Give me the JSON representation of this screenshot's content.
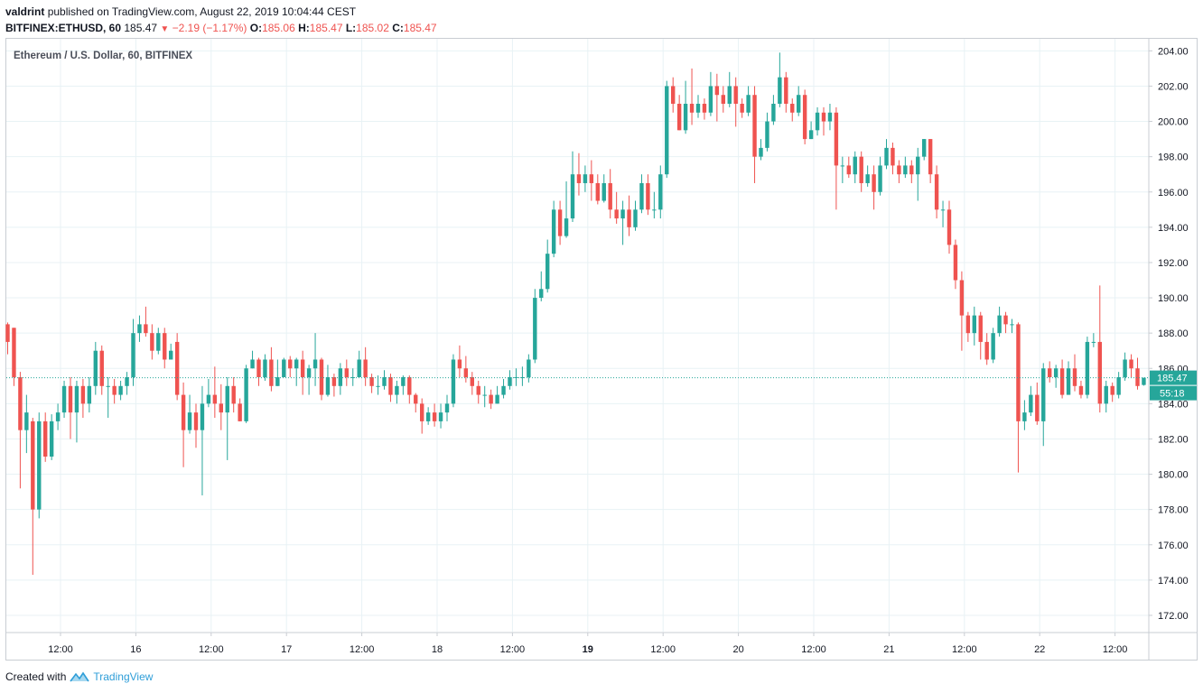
{
  "header": {
    "author": "valdrint",
    "published": "published on TradingView.com, August 22, 2019 10:04:44 CEST",
    "symbol": "BITFINEX:ETHUSD, 60",
    "last": "185.47",
    "change": "−2.19 (−1.17%)",
    "o_label": "O:",
    "o_value": "185.06",
    "h_label": "H:",
    "h_value": "185.47",
    "l_label": "L:",
    "l_value": "185.02",
    "c_label": "C:",
    "c_value": "185.47"
  },
  "footer": {
    "created_with": "Created with",
    "brand": "TradingView",
    "icon": "tradingview-logo-icon"
  },
  "colors": {
    "up": "#26a69a",
    "down": "#ef5350",
    "grid": "#e8f2f5",
    "text": "#131722",
    "price_label_bg": "#26a69a"
  },
  "chart_data": {
    "type": "candlestick",
    "title": "Ethereum / U.S. Dollar, 60, BITFINEX",
    "ylim": [
      171,
      205
    ],
    "y_ticks": [
      "204.00",
      "202.00",
      "200.00",
      "198.00",
      "196.00",
      "194.00",
      "192.00",
      "190.00",
      "188.00",
      "186.00",
      "184.00",
      "182.00",
      "180.00",
      "178.00",
      "176.00",
      "174.00",
      "172.00"
    ],
    "x_ticks": [
      {
        "label": "12:00",
        "hour": 12
      },
      {
        "label": "16",
        "hour": 24
      },
      {
        "label": "12:00",
        "hour": 36
      },
      {
        "label": "17",
        "hour": 48
      },
      {
        "label": "12:00",
        "hour": 60
      },
      {
        "label": "18",
        "hour": 72
      },
      {
        "label": "12:00",
        "hour": 84
      },
      {
        "label": "19",
        "hour": 96,
        "bold": true
      },
      {
        "label": "12:00",
        "hour": 108
      },
      {
        "label": "20",
        "hour": 120
      },
      {
        "label": "12:00",
        "hour": 132
      },
      {
        "label": "21",
        "hour": 144
      },
      {
        "label": "12:00",
        "hour": 156
      },
      {
        "label": "22",
        "hour": 168
      },
      {
        "label": "12:00",
        "hour": 180
      }
    ],
    "current_price": 185.47,
    "current_price_label": "185.47",
    "countdown_label": "55:18",
    "candles": [
      [
        188.5,
        187.5,
        188.6,
        186.8
      ],
      [
        188.3,
        185.5,
        188.3,
        185.0
      ],
      [
        185.5,
        182.5,
        185.8,
        179.2
      ],
      [
        182.5,
        183.5,
        184.5,
        181.2
      ],
      [
        183.0,
        178.0,
        183.2,
        174.3
      ],
      [
        178.0,
        183.0,
        183.5,
        177.5
      ],
      [
        183.0,
        181.0,
        183.5,
        180.7
      ],
      [
        181.0,
        183.0,
        183.4,
        180.8
      ],
      [
        183.0,
        183.5,
        184.0,
        182.5
      ],
      [
        183.5,
        185.0,
        185.3,
        183.2
      ],
      [
        185.0,
        183.5,
        185.5,
        182.0
      ],
      [
        183.5,
        185.0,
        185.3,
        181.8
      ],
      [
        185.0,
        184.0,
        185.4,
        183.2
      ],
      [
        184.0,
        185.0,
        185.5,
        183.5
      ],
      [
        185.0,
        187.0,
        187.5,
        184.5
      ],
      [
        187.0,
        185.0,
        187.3,
        184.5
      ],
      [
        185.0,
        185.0,
        185.5,
        183.2
      ],
      [
        185.0,
        184.5,
        185.4,
        184.0
      ],
      [
        184.5,
        185.0,
        185.3,
        184.2
      ],
      [
        185.0,
        185.5,
        185.8,
        184.5
      ],
      [
        185.5,
        188.0,
        188.8,
        185.0
      ],
      [
        188.0,
        188.5,
        189.0,
        187.5
      ],
      [
        188.5,
        188.0,
        189.5,
        187.8
      ],
      [
        188.0,
        187.0,
        188.5,
        186.5
      ],
      [
        187.0,
        188.0,
        188.3,
        186.8
      ],
      [
        188.0,
        186.5,
        188.3,
        186.0
      ],
      [
        186.5,
        187.0,
        187.4,
        186.5
      ],
      [
        187.5,
        184.5,
        188.0,
        184.2
      ],
      [
        184.5,
        182.5,
        185.2,
        180.4
      ],
      [
        182.5,
        183.5,
        184.5,
        182.3
      ],
      [
        183.5,
        182.5,
        184.0,
        181.5
      ],
      [
        182.5,
        184.0,
        185.0,
        178.8
      ],
      [
        184.0,
        184.5,
        185.4,
        183.8
      ],
      [
        184.5,
        184.0,
        186.1,
        183.2
      ],
      [
        184.0,
        183.5,
        185.1,
        182.5
      ],
      [
        183.5,
        185.0,
        185.5,
        180.8
      ],
      [
        185.0,
        184.0,
        185.5,
        183.5
      ],
      [
        184.0,
        183.0,
        184.3,
        183.0
      ],
      [
        183.0,
        186.0,
        186.2,
        182.9
      ],
      [
        186.0,
        186.5,
        187.0,
        186.0
      ],
      [
        186.5,
        185.5,
        186.6,
        185.0
      ],
      [
        185.5,
        186.5,
        186.8,
        185.3
      ],
      [
        186.5,
        185.0,
        187.2,
        184.7
      ],
      [
        185.0,
        185.5,
        186.5,
        185.0
      ],
      [
        185.5,
        186.5,
        186.6,
        185.5
      ],
      [
        186.5,
        186.0,
        186.7,
        185.5
      ],
      [
        186.0,
        186.5,
        186.6,
        185.0
      ],
      [
        186.5,
        185.5,
        187.0,
        184.5
      ],
      [
        185.5,
        186.0,
        186.2,
        184.5
      ],
      [
        186.0,
        186.5,
        188.0,
        185.0
      ],
      [
        186.5,
        184.5,
        186.6,
        184.2
      ],
      [
        184.5,
        185.5,
        186.2,
        184.4
      ],
      [
        185.5,
        185.0,
        185.7,
        184.4
      ],
      [
        185.0,
        186.0,
        186.3,
        184.5
      ],
      [
        186.0,
        185.5,
        186.5,
        185.0
      ],
      [
        185.5,
        185.5,
        186.0,
        185.0
      ],
      [
        185.5,
        186.5,
        187.0,
        185.5
      ],
      [
        186.5,
        185.5,
        187.2,
        185.0
      ],
      [
        185.5,
        185.0,
        185.7,
        184.6
      ],
      [
        185.0,
        185.0,
        185.6,
        184.5
      ],
      [
        185.0,
        185.5,
        185.9,
        184.8
      ],
      [
        185.5,
        184.5,
        185.7,
        184.1
      ],
      [
        184.5,
        185.0,
        185.3,
        184.0
      ],
      [
        185.0,
        185.5,
        185.6,
        184.5
      ],
      [
        185.5,
        184.5,
        185.6,
        184.0
      ],
      [
        184.5,
        184.0,
        184.6,
        183.5
      ],
      [
        184.0,
        183.0,
        184.3,
        182.3
      ],
      [
        183.0,
        183.5,
        183.8,
        182.8
      ],
      [
        183.5,
        183.0,
        184.0,
        182.7
      ],
      [
        183.0,
        183.5,
        184.0,
        182.6
      ],
      [
        183.5,
        184.0,
        184.5,
        183.0
      ],
      [
        184.0,
        186.5,
        186.8,
        183.8
      ],
      [
        186.5,
        186.0,
        187.3,
        185.5
      ],
      [
        186.0,
        185.5,
        186.7,
        185.2
      ],
      [
        185.5,
        185.0,
        185.8,
        184.5
      ],
      [
        185.0,
        184.5,
        185.3,
        184.0
      ],
      [
        184.5,
        184.5,
        185.0,
        183.8
      ],
      [
        184.5,
        184.0,
        184.8,
        183.7
      ],
      [
        184.0,
        184.5,
        185.0,
        184.0
      ],
      [
        184.5,
        185.0,
        185.4,
        184.3
      ],
      [
        185.0,
        185.5,
        185.9,
        184.8
      ],
      [
        185.5,
        185.5,
        186.0,
        185.0
      ],
      [
        185.5,
        185.5,
        186.1,
        185.0
      ],
      [
        185.5,
        186.5,
        186.8,
        185.2
      ],
      [
        186.5,
        190.0,
        190.5,
        186.3
      ],
      [
        190.0,
        190.5,
        191.5,
        189.8
      ],
      [
        190.5,
        192.5,
        193.3,
        190.3
      ],
      [
        192.5,
        195.0,
        195.5,
        192.3
      ],
      [
        195.0,
        193.5,
        195.5,
        193.0
      ],
      [
        193.5,
        194.5,
        196.6,
        193.4
      ],
      [
        194.5,
        197.0,
        198.3,
        194.3
      ],
      [
        197.0,
        196.5,
        198.2,
        195.8
      ],
      [
        196.5,
        197.0,
        197.5,
        196.0
      ],
      [
        197.0,
        196.5,
        197.8,
        195.5
      ],
      [
        196.5,
        195.5,
        197.0,
        195.3
      ],
      [
        195.5,
        196.5,
        197.0,
        195.4
      ],
      [
        196.5,
        195.0,
        197.3,
        194.5
      ],
      [
        195.0,
        194.5,
        196.0,
        194.2
      ],
      [
        194.5,
        195.0,
        195.5,
        193.0
      ],
      [
        195.0,
        194.0,
        195.8,
        193.5
      ],
      [
        194.0,
        195.0,
        195.5,
        193.8
      ],
      [
        195.0,
        196.5,
        197.0,
        194.8
      ],
      [
        196.5,
        195.0,
        197.0,
        194.7
      ],
      [
        195.0,
        195.0,
        196.0,
        194.5
      ],
      [
        195.0,
        197.0,
        197.5,
        194.5
      ],
      [
        197.0,
        202.0,
        202.3,
        196.8
      ],
      [
        202.0,
        201.0,
        202.5,
        200.5
      ],
      [
        201.0,
        199.5,
        201.5,
        199.5
      ],
      [
        199.5,
        201.0,
        202.3,
        199.3
      ],
      [
        201.0,
        200.5,
        203.0,
        199.8
      ],
      [
        200.5,
        201.0,
        201.5,
        200.2
      ],
      [
        201.0,
        200.5,
        201.3,
        200.1
      ],
      [
        200.5,
        202.0,
        202.8,
        200.3
      ],
      [
        202.0,
        201.5,
        202.7,
        200.0
      ],
      [
        201.5,
        201.0,
        202.0,
        200.5
      ],
      [
        201.0,
        202.0,
        202.8,
        200.8
      ],
      [
        202.0,
        201.0,
        202.5,
        199.7
      ],
      [
        201.0,
        200.5,
        201.3,
        200.2
      ],
      [
        200.5,
        201.5,
        202.0,
        200.3
      ],
      [
        201.5,
        198.0,
        202.0,
        196.5
      ],
      [
        198.0,
        198.5,
        199.0,
        197.8
      ],
      [
        198.5,
        200.0,
        200.5,
        198.3
      ],
      [
        200.0,
        201.0,
        201.5,
        199.8
      ],
      [
        201.0,
        202.5,
        203.9,
        200.8
      ],
      [
        202.5,
        201.0,
        202.8,
        200.5
      ],
      [
        201.0,
        200.5,
        201.3,
        200.0
      ],
      [
        200.5,
        201.5,
        202.0,
        200.3
      ],
      [
        201.5,
        199.0,
        201.8,
        198.7
      ],
      [
        199.0,
        199.5,
        200.0,
        199.0
      ],
      [
        199.5,
        200.5,
        200.8,
        199.2
      ],
      [
        200.5,
        200.0,
        200.8,
        199.2
      ],
      [
        200.0,
        200.5,
        201.0,
        199.5
      ],
      [
        200.5,
        197.5,
        200.8,
        195.0
      ],
      [
        197.5,
        197.5,
        198.0,
        196.5
      ],
      [
        197.5,
        197.0,
        198.0,
        196.8
      ],
      [
        197.0,
        198.0,
        198.3,
        196.5
      ],
      [
        198.0,
        196.5,
        198.3,
        196.0
      ],
      [
        196.5,
        197.0,
        197.5,
        196.3
      ],
      [
        197.0,
        196.0,
        197.5,
        195.0
      ],
      [
        196.0,
        197.5,
        198.0,
        195.8
      ],
      [
        197.5,
        198.5,
        199.0,
        197.3
      ],
      [
        198.5,
        197.5,
        198.8,
        197.0
      ],
      [
        197.5,
        197.0,
        197.8,
        196.5
      ],
      [
        197.0,
        197.5,
        198.0,
        196.8
      ],
      [
        197.5,
        197.0,
        197.8,
        196.5
      ],
      [
        197.0,
        198.0,
        198.5,
        195.5
      ],
      [
        198.0,
        199.0,
        199.0,
        197.8
      ],
      [
        199.0,
        197.0,
        199.0,
        196.5
      ],
      [
        197.0,
        195.0,
        197.5,
        194.5
      ],
      [
        195.0,
        195.0,
        195.5,
        194.0
      ],
      [
        195.0,
        193.0,
        195.5,
        192.5
      ],
      [
        193.0,
        191.0,
        193.3,
        190.5
      ],
      [
        191.0,
        189.0,
        191.5,
        187.0
      ],
      [
        189.0,
        188.0,
        189.2,
        187.5
      ],
      [
        188.0,
        189.0,
        189.5,
        187.3
      ],
      [
        189.0,
        187.5,
        189.2,
        186.5
      ],
      [
        187.5,
        186.5,
        188.0,
        186.2
      ],
      [
        186.5,
        188.0,
        188.3,
        186.3
      ],
      [
        188.0,
        189.0,
        189.5,
        187.8
      ],
      [
        189.0,
        188.5,
        189.2,
        188.0
      ],
      [
        188.5,
        188.5,
        188.8,
        188.0
      ],
      [
        188.5,
        183.0,
        188.6,
        180.1
      ],
      [
        183.0,
        183.5,
        184.2,
        182.5
      ],
      [
        183.5,
        184.5,
        185.0,
        183.3
      ],
      [
        184.5,
        183.0,
        185.2,
        182.8
      ],
      [
        183.0,
        186.0,
        186.3,
        181.6
      ],
      [
        186.0,
        185.5,
        186.4,
        185.2
      ],
      [
        185.5,
        186.0,
        186.2,
        184.9
      ],
      [
        186.0,
        184.5,
        186.5,
        184.3
      ],
      [
        184.5,
        186.0,
        186.4,
        184.5
      ],
      [
        186.0,
        185.0,
        186.8,
        184.7
      ],
      [
        185.0,
        184.5,
        185.3,
        184.3
      ],
      [
        184.5,
        187.5,
        187.8,
        184.3
      ],
      [
        187.5,
        187.5,
        188.0,
        187.2
      ],
      [
        187.5,
        184.0,
        190.7,
        183.5
      ],
      [
        184.0,
        185.0,
        185.3,
        183.5
      ],
      [
        185.0,
        184.5,
        185.2,
        184.1
      ],
      [
        184.5,
        185.5,
        185.8,
        184.3
      ],
      [
        185.5,
        186.5,
        186.9,
        185.3
      ],
      [
        186.5,
        186.0,
        186.8,
        185.5
      ],
      [
        186.0,
        185.0,
        186.6,
        184.8
      ],
      [
        185.06,
        185.47,
        185.47,
        185.02
      ]
    ]
  }
}
